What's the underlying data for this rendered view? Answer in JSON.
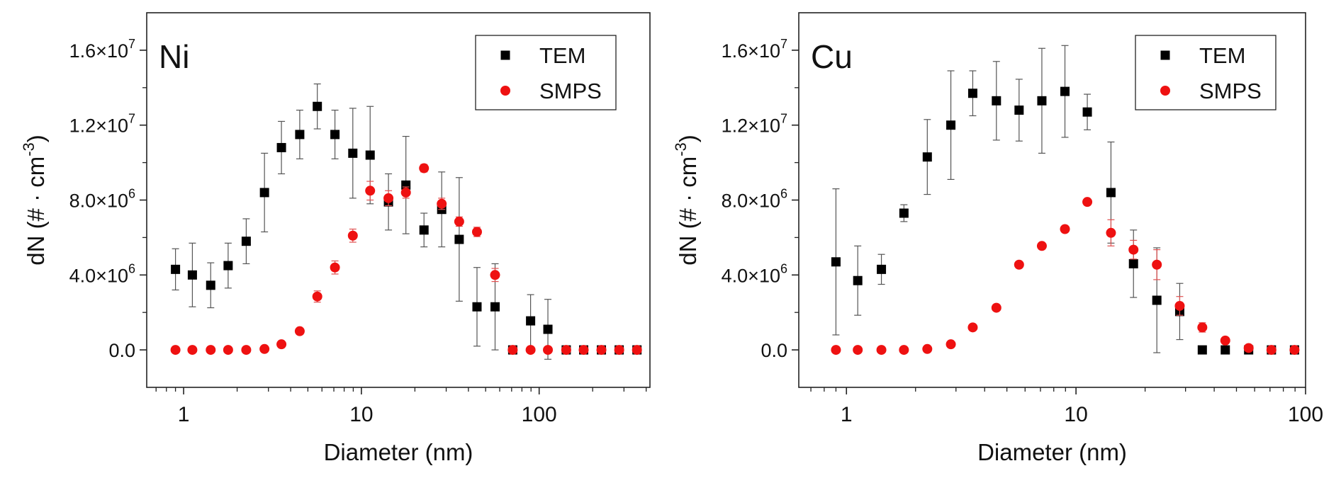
{
  "chart_data": [
    {
      "type": "scatter",
      "panel_label": "Ni",
      "xlabel": "Diameter (nm)",
      "ylabel_main": "dN (# · cm",
      "ylabel_sup": "-3",
      "ylabel_close": ")",
      "xscale": "log",
      "xlim": [
        0.62,
        420
      ],
      "ylim": [
        -2000000,
        18000000
      ],
      "xticks": [
        1,
        10,
        100
      ],
      "xtick_labels": [
        "1",
        "10",
        "100"
      ],
      "yticks": [
        0,
        4000000,
        8000000,
        12000000,
        16000000
      ],
      "ytick_labels": [
        {
          "base": "0.0",
          "exp": ""
        },
        {
          "base": "4.0×10",
          "exp": "6"
        },
        {
          "base": "8.0×10",
          "exp": "6"
        },
        {
          "base": "1.2×10",
          "exp": "7"
        },
        {
          "base": "1.6×10",
          "exp": "7"
        }
      ],
      "legend_position": "top-right",
      "series": [
        {
          "name": "TEM",
          "marker": "square",
          "color": "#000000",
          "x": [
            0.9,
            1.12,
            1.42,
            1.78,
            2.25,
            2.85,
            3.55,
            4.5,
            5.65,
            7.1,
            8.95,
            11.2,
            14.2,
            17.8,
            22.5,
            28.3,
            35.5,
            44.7,
            56.5,
            71,
            89.5,
            112,
            142,
            178,
            224,
            282,
            355
          ],
          "y": [
            4300000,
            4000000,
            3450000,
            4500000,
            5800000,
            8400000,
            10800000,
            11500000,
            13000000,
            11500000,
            10500000,
            10400000,
            7900000,
            8800000,
            6400000,
            7500000,
            5900000,
            2300000,
            2300000,
            0,
            1550000,
            1100000,
            0,
            0,
            0,
            0,
            0
          ],
          "err": [
            1100000,
            1700000,
            1200000,
            1200000,
            1200000,
            2100000,
            1400000,
            1300000,
            1200000,
            1300000,
            2400000,
            2600000,
            1500000,
            2600000,
            900000,
            2000000,
            3300000,
            2100000,
            2300000,
            0,
            1400000,
            1600000,
            0,
            0,
            0,
            0,
            0
          ]
        },
        {
          "name": "SMPS",
          "marker": "circle",
          "color": "#ee1111",
          "x": [
            0.9,
            1.12,
            1.42,
            1.78,
            2.25,
            2.85,
            3.55,
            4.5,
            5.65,
            7.1,
            8.95,
            11.2,
            14.2,
            17.8,
            22.5,
            28.3,
            35.5,
            44.7,
            56.5,
            71,
            89.5,
            112,
            142,
            178,
            224,
            282,
            355
          ],
          "y": [
            0,
            0,
            0,
            0,
            0,
            50000,
            300000,
            1000000,
            2850000,
            4400000,
            6100000,
            8500000,
            8100000,
            8400000,
            9700000,
            7800000,
            6850000,
            6300000,
            4000000,
            0,
            0,
            0,
            0,
            0,
            0,
            0,
            0
          ],
          "err": [
            0,
            0,
            0,
            0,
            0,
            0,
            50000,
            60000,
            300000,
            350000,
            350000,
            500000,
            400000,
            300000,
            200000,
            300000,
            250000,
            250000,
            350000,
            0,
            0,
            0,
            0,
            0,
            0,
            0,
            0
          ]
        }
      ]
    },
    {
      "type": "scatter",
      "panel_label": "Cu",
      "xlabel": "Diameter (nm)",
      "ylabel_main": "dN (# · cm",
      "ylabel_sup": "-3",
      "ylabel_close": ")",
      "xscale": "log",
      "xlim": [
        0.62,
        100
      ],
      "ylim": [
        -2000000,
        18000000
      ],
      "xticks": [
        1,
        10,
        100
      ],
      "xtick_labels": [
        "1",
        "10",
        "100"
      ],
      "yticks": [
        0,
        4000000,
        8000000,
        12000000,
        16000000
      ],
      "ytick_labels": [
        {
          "base": "0.0",
          "exp": ""
        },
        {
          "base": "4.0×10",
          "exp": "6"
        },
        {
          "base": "8.0×10",
          "exp": "6"
        },
        {
          "base": "1.2×10",
          "exp": "7"
        },
        {
          "base": "1.6×10",
          "exp": "7"
        }
      ],
      "legend_position": "top-right",
      "series": [
        {
          "name": "TEM",
          "marker": "square",
          "color": "#000000",
          "x": [
            0.9,
            1.12,
            1.42,
            1.78,
            2.25,
            2.85,
            3.55,
            4.5,
            5.65,
            7.1,
            8.95,
            11.2,
            14.2,
            17.8,
            22.5,
            28.3,
            35.5,
            44.7,
            56.5,
            71,
            89.5
          ],
          "y": [
            4700000,
            3700000,
            4300000,
            7300000,
            10300000,
            12000000,
            13700000,
            13300000,
            12800000,
            13300000,
            13800000,
            12700000,
            8400000,
            4600000,
            2650000,
            2050000,
            0,
            0,
            0,
            0,
            0
          ],
          "err": [
            3900000,
            1850000,
            800000,
            450000,
            2000000,
            2900000,
            1200000,
            2100000,
            1650000,
            2800000,
            2450000,
            950000,
            2700000,
            1800000,
            2800000,
            1500000,
            0,
            0,
            0,
            0,
            0
          ]
        },
        {
          "name": "SMPS",
          "marker": "circle",
          "color": "#ee1111",
          "x": [
            0.9,
            1.12,
            1.42,
            1.78,
            2.25,
            2.85,
            3.55,
            4.5,
            5.65,
            7.1,
            8.95,
            11.2,
            14.2,
            17.8,
            22.5,
            28.3,
            35.5,
            44.7,
            56.5,
            71,
            89.5
          ],
          "y": [
            0,
            0,
            0,
            0,
            50000,
            300000,
            1200000,
            2250000,
            4550000,
            5550000,
            6450000,
            7900000,
            6250000,
            5350000,
            4550000,
            2350000,
            1200000,
            500000,
            100000,
            0,
            0
          ],
          "err": [
            0,
            0,
            0,
            0,
            0,
            0,
            50000,
            60000,
            80000,
            80000,
            80000,
            150000,
            700000,
            500000,
            800000,
            500000,
            250000,
            100000,
            50000,
            0,
            0
          ]
        }
      ]
    }
  ]
}
